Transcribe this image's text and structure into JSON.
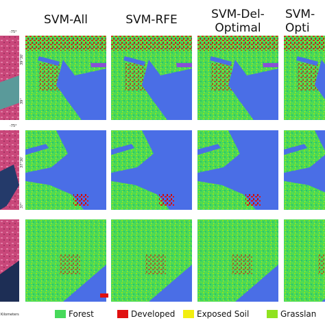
{
  "headers": [
    {
      "lines": [
        "SVM-All"
      ]
    },
    {
      "lines": [
        "SVM-RFE"
      ]
    },
    {
      "lines": [
        "SVM-Del-",
        "Optimal"
      ]
    },
    {
      "lines": [
        "SVM-",
        "Opti"
      ]
    }
  ],
  "legend": [
    "Forest",
    "Developed",
    "Exposed Soil",
    "Grasslan"
  ],
  "coordinate_labels": [
    "-75°",
    "39°30'",
    "39°",
    "-75°",
    "37°30'",
    "37°",
    "Kilometers"
  ]
}
